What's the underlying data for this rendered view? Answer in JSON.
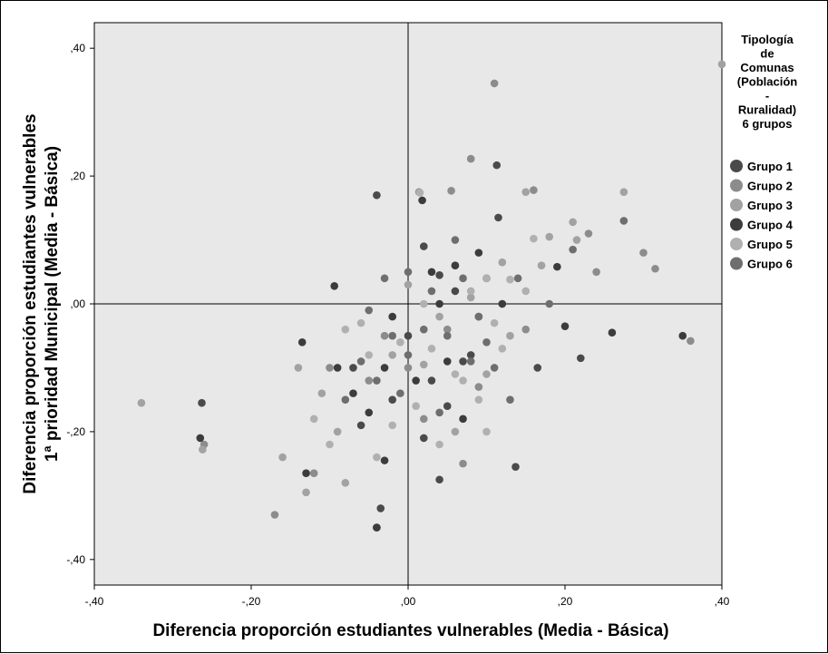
{
  "chart_data": {
    "type": "scatter",
    "xlabel": "Diferencia proporción estudiantes vulnerables (Media - Básica)",
    "ylabel_line1": "Diferencia proporción estudiantes vulnerables",
    "ylabel_line2": "1ª prioridad Municipal (Media - Básica)",
    "xlim": [
      -0.4,
      0.4
    ],
    "ylim": [
      -0.44,
      0.44
    ],
    "x_ticks": [
      -0.4,
      -0.2,
      0.0,
      0.2,
      0.4
    ],
    "y_ticks": [
      -0.4,
      -0.2,
      0.0,
      0.2,
      0.4
    ],
    "x_tick_labels": [
      "-,40",
      "-,20",
      ",00",
      ",20",
      ",40"
    ],
    "y_tick_labels": [
      "-,40",
      "-,20",
      ",00",
      ",20",
      ",40"
    ],
    "reference_lines": {
      "x": 0.0,
      "y": 0.0
    },
    "plot_background": "#e8e8e8",
    "grid": false,
    "legend_position": "right",
    "legend_title": [
      "Tipología",
      "de",
      "Comunas",
      "(Población",
      "-",
      "Ruralidad)",
      "6 grupos"
    ],
    "series": [
      {
        "name": "Grupo 1",
        "color": "#4a4a4a",
        "points": [
          [
            -0.04,
            0.17
          ],
          [
            0.113,
            0.217
          ],
          [
            -0.263,
            -0.155
          ],
          [
            0.165,
            -0.1
          ],
          [
            0.22,
            -0.085
          ],
          [
            -0.04,
            -0.35
          ],
          [
            0.04,
            -0.275
          ],
          [
            0.137,
            -0.255
          ],
          [
            -0.035,
            -0.32
          ],
          [
            0.0,
            -0.05
          ],
          [
            0.02,
            0.09
          ],
          [
            0.04,
            0.045
          ],
          [
            0.06,
            0.02
          ],
          [
            0.09,
            -0.02
          ],
          [
            -0.02,
            -0.15
          ],
          [
            0.03,
            -0.12
          ],
          [
            0.07,
            -0.09
          ],
          [
            -0.06,
            -0.19
          ],
          [
            0.02,
            -0.21
          ],
          [
            0.1,
            0.04
          ],
          [
            -0.07,
            -0.1
          ],
          [
            0.05,
            -0.16
          ],
          [
            0.115,
            0.135
          ],
          [
            0.08,
            -0.08
          ]
        ]
      },
      {
        "name": "Grupo 2",
        "color": "#8c8c8c",
        "points": [
          [
            0.11,
            0.345
          ],
          [
            0.08,
            0.227
          ],
          [
            0.014,
            0.175
          ],
          [
            0.055,
            0.177
          ],
          [
            0.16,
            0.178
          ],
          [
            0.23,
            0.11
          ],
          [
            0.3,
            0.08
          ],
          [
            0.24,
            0.05
          ],
          [
            0.315,
            0.055
          ],
          [
            0.36,
            -0.058
          ],
          [
            -0.26,
            -0.22
          ],
          [
            -0.17,
            -0.33
          ],
          [
            -0.12,
            -0.265
          ],
          [
            0.07,
            -0.25
          ],
          [
            0.02,
            -0.18
          ],
          [
            0.12,
            0.0
          ],
          [
            0.0,
            -0.1
          ],
          [
            0.05,
            -0.04
          ],
          [
            -0.1,
            -0.1
          ],
          [
            0.15,
            -0.04
          ],
          [
            0.09,
            -0.13
          ],
          [
            -0.03,
            -0.05
          ],
          [
            0.06,
            0.06
          ],
          [
            -0.05,
            -0.12
          ]
        ]
      },
      {
        "name": "Grupo 3",
        "color": "#a2a2a2",
        "points": [
          [
            -0.34,
            -0.155
          ],
          [
            -0.262,
            -0.228
          ],
          [
            0.4,
            0.375
          ],
          [
            0.15,
            0.175
          ],
          [
            0.21,
            0.128
          ],
          [
            0.275,
            0.175
          ],
          [
            0.18,
            0.105
          ],
          [
            0.215,
            0.1
          ],
          [
            0.12,
            0.065
          ],
          [
            -0.14,
            -0.1
          ],
          [
            -0.16,
            -0.24
          ],
          [
            -0.08,
            -0.28
          ],
          [
            -0.13,
            -0.295
          ],
          [
            0.02,
            -0.095
          ],
          [
            0.1,
            -0.11
          ],
          [
            0.04,
            -0.02
          ],
          [
            -0.02,
            -0.08
          ],
          [
            0.13,
            -0.05
          ],
          [
            -0.09,
            -0.2
          ],
          [
            0.06,
            -0.2
          ],
          [
            0.0,
            0.03
          ],
          [
            0.17,
            0.06
          ],
          [
            -0.11,
            -0.14
          ],
          [
            0.08,
            0.01
          ]
        ]
      },
      {
        "name": "Grupo 4",
        "color": "#3c3c3c",
        "points": [
          [
            0.018,
            0.162
          ],
          [
            -0.094,
            0.028
          ],
          [
            0.35,
            -0.05
          ],
          [
            0.26,
            -0.045
          ],
          [
            0.2,
            -0.035
          ],
          [
            0.19,
            0.058
          ],
          [
            -0.265,
            -0.21
          ],
          [
            -0.13,
            -0.265
          ],
          [
            -0.04,
            -0.35
          ],
          [
            -0.03,
            -0.245
          ],
          [
            -0.135,
            -0.06
          ],
          [
            -0.09,
            -0.1
          ],
          [
            -0.05,
            -0.17
          ],
          [
            0.06,
            0.06
          ],
          [
            0.03,
            0.05
          ],
          [
            0.09,
            0.08
          ],
          [
            -0.02,
            -0.02
          ],
          [
            0.01,
            -0.12
          ],
          [
            0.07,
            -0.18
          ],
          [
            -0.07,
            -0.14
          ],
          [
            0.12,
            0.0
          ],
          [
            0.05,
            -0.09
          ],
          [
            -0.03,
            -0.1
          ],
          [
            0.04,
            0.0
          ]
        ]
      },
      {
        "name": "Grupo 5",
        "color": "#b0b0b0",
        "points": [
          [
            0.015,
            0.174
          ],
          [
            0.1,
            0.04
          ],
          [
            0.16,
            0.102
          ],
          [
            0.13,
            0.038
          ],
          [
            0.09,
            -0.15
          ],
          [
            0.04,
            -0.22
          ],
          [
            0.1,
            -0.2
          ],
          [
            -0.08,
            -0.04
          ],
          [
            -0.04,
            -0.24
          ],
          [
            0.12,
            -0.07
          ],
          [
            0.07,
            -0.12
          ],
          [
            -0.05,
            -0.08
          ],
          [
            0.15,
            0.02
          ],
          [
            0.02,
            0.0
          ],
          [
            -0.12,
            -0.18
          ],
          [
            0.01,
            -0.16
          ],
          [
            -0.01,
            -0.06
          ],
          [
            0.06,
            -0.11
          ],
          [
            -0.1,
            -0.22
          ],
          [
            0.03,
            -0.07
          ],
          [
            -0.06,
            -0.03
          ],
          [
            0.08,
            0.02
          ],
          [
            -0.02,
            -0.19
          ],
          [
            0.11,
            -0.03
          ]
        ]
      },
      {
        "name": "Grupo 6",
        "color": "#6e6e6e",
        "points": [
          [
            0.275,
            0.13
          ],
          [
            0.21,
            0.085
          ],
          [
            0.18,
            0.0
          ],
          [
            0.14,
            0.04
          ],
          [
            0.0,
            0.05
          ],
          [
            -0.03,
            0.04
          ],
          [
            -0.02,
            -0.05
          ],
          [
            0.05,
            -0.05
          ],
          [
            0.13,
            -0.15
          ],
          [
            0.08,
            -0.09
          ],
          [
            -0.08,
            -0.15
          ],
          [
            -0.04,
            -0.12
          ],
          [
            0.1,
            -0.06
          ],
          [
            0.06,
            0.1
          ],
          [
            0.02,
            -0.04
          ],
          [
            -0.06,
            -0.09
          ],
          [
            0.03,
            0.02
          ],
          [
            0.09,
            -0.02
          ],
          [
            -0.01,
            -0.14
          ],
          [
            0.04,
            -0.17
          ],
          [
            0.11,
            -0.1
          ],
          [
            -0.05,
            -0.01
          ],
          [
            0.07,
            0.04
          ],
          [
            0.0,
            -0.08
          ]
        ]
      }
    ]
  }
}
